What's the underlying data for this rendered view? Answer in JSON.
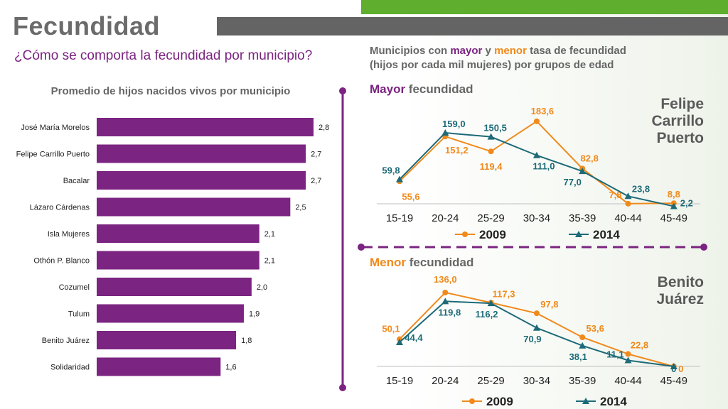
{
  "header": {
    "title": "Fecundidad",
    "subtitle": "¿Cómo se comporta la fecundidad por municipio?"
  },
  "right_header": {
    "line1_pre": "Municipios con ",
    "mayor": "mayor",
    "mid": " y ",
    "menor": "menor",
    "line1_post": " tasa de fecundidad",
    "line2": "(hijos por cada mil mujeres) por grupos de edad"
  },
  "sections": {
    "top": {
      "label_colored": "Mayor",
      "label_rest": " fecundidad",
      "municipio_line1": "Felipe",
      "municipio_line2": "Carrillo",
      "municipio_line3": "Puerto"
    },
    "bottom": {
      "label_colored": "Menor",
      "label_rest": " fecundidad",
      "municipio_line1": "Benito",
      "municipio_line2": "Juárez"
    }
  },
  "colors": {
    "purple": "#7b2481",
    "orange": "#f08a1c",
    "teal": "#1d6a78",
    "gray": "#646464",
    "green": "#5fae2e"
  },
  "chart_data": [
    {
      "type": "bar",
      "orientation": "horizontal",
      "title": "Promedio de hijos nacidos vivos por municipio",
      "categories": [
        "José María Morelos",
        "Felipe Carrillo Puerto",
        "Bacalar",
        "Lázaro Cárdenas",
        "Isla Mujeres",
        "Othón P. Blanco",
        "Cozumel",
        "Tulum",
        "Benito Juárez",
        "Solidaridad"
      ],
      "values": [
        2.8,
        2.7,
        2.7,
        2.5,
        2.1,
        2.1,
        2.0,
        1.9,
        1.8,
        1.6
      ],
      "value_labels": [
        "2,8",
        "2,7",
        "2,7",
        "2,5",
        "2,1",
        "2,1",
        "2,0",
        "1,9",
        "1,8",
        "1,6"
      ],
      "xlim": [
        0,
        3.0
      ],
      "grid": false,
      "color": "#7b2481"
    },
    {
      "type": "line",
      "categories": [
        "15-19",
        "20-24",
        "25-29",
        "30-34",
        "35-39",
        "40-44",
        "45-49"
      ],
      "series": [
        {
          "name": "2009",
          "values": [
            55.6,
            151.2,
            119.4,
            183.6,
            82.8,
            7.8,
            8.8
          ],
          "labels": [
            "55,6",
            "151,2",
            "119,4",
            "183,6",
            "82,8",
            "7,8",
            "8,8"
          ],
          "color": "#f08a1c",
          "marker": "circle"
        },
        {
          "name": "2014",
          "values": [
            59.8,
            159.0,
            150.5,
            111.0,
            77.0,
            23.8,
            2.2
          ],
          "labels": [
            "59,8",
            "159,0",
            "150,5",
            "111,0",
            "77,0",
            "23,8",
            "2,2"
          ],
          "color": "#1d6a78",
          "marker": "triangle"
        }
      ],
      "ylim": [
        0,
        200
      ],
      "legend": "bottom",
      "grid": false
    },
    {
      "type": "line",
      "categories": [
        "15-19",
        "20-24",
        "25-29",
        "30-34",
        "35-39",
        "40-44",
        "45-49"
      ],
      "series": [
        {
          "name": "2009",
          "values": [
            50.1,
            136.0,
            117.3,
            97.8,
            53.6,
            22.8,
            0
          ],
          "labels": [
            "50,1",
            "136,0",
            "117,3",
            "97,8",
            "53,6",
            "22,8",
            "0"
          ],
          "color": "#f08a1c",
          "marker": "circle"
        },
        {
          "name": "2014",
          "values": [
            44.4,
            119.8,
            116.2,
            70.9,
            38.1,
            11.1,
            0
          ],
          "labels": [
            "44,4",
            "119,8",
            "116,2",
            "70,9",
            "38,1",
            "11,1",
            "0"
          ],
          "color": "#1d6a78",
          "marker": "triangle"
        }
      ],
      "ylim": [
        0,
        150
      ],
      "legend": "bottom",
      "grid": false
    }
  ]
}
